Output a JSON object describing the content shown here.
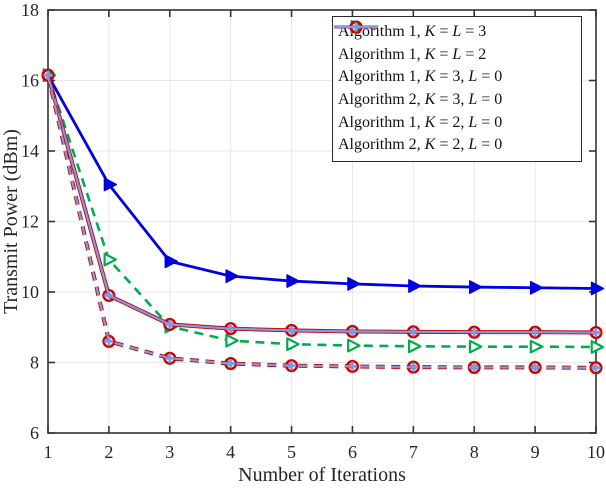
{
  "figure": {
    "background": "#ffffff",
    "axis_color": "#333333",
    "grid_color": "#e8e8e8",
    "text_color": "#262626"
  },
  "chart_data": {
    "type": "line",
    "title": "",
    "xlabel": "Number of Iterations",
    "ylabel": "Transmit Power (dBm)",
    "xlim": [
      1,
      10
    ],
    "ylim": [
      6,
      18
    ],
    "xticks": [
      1,
      2,
      3,
      4,
      5,
      6,
      7,
      8,
      9,
      10
    ],
    "yticks": [
      6,
      8,
      10,
      12,
      14,
      16,
      18
    ],
    "grid": true,
    "legend_position": "top-right",
    "x": [
      1,
      2,
      3,
      4,
      5,
      6,
      7,
      8,
      9,
      10
    ],
    "series": [
      {
        "name": "Algorithm 1, K = L = 3",
        "label_segments": [
          {
            "text": "Algorithm 1, "
          },
          {
            "text": "K",
            "italic": true
          },
          {
            "text": " = "
          },
          {
            "text": "L",
            "italic": true
          },
          {
            "text": " = 3"
          }
        ],
        "color": "#0101df",
        "line_style": "solid",
        "line_width": 2.8,
        "marker": "triangle-right-filled",
        "values": [
          16.15,
          13.05,
          10.87,
          10.45,
          10.31,
          10.23,
          10.17,
          10.14,
          10.12,
          10.1
        ]
      },
      {
        "name": "Algorithm 1, K = L = 2",
        "label_segments": [
          {
            "text": "Algorithm 1, "
          },
          {
            "text": "K",
            "italic": true
          },
          {
            "text": " = "
          },
          {
            "text": "L",
            "italic": true
          },
          {
            "text": " = 2"
          }
        ],
        "color": "#00ad4e",
        "line_style": "dashed",
        "line_width": 2.6,
        "marker": "triangle-right-open",
        "values": [
          16.15,
          10.92,
          9.02,
          8.62,
          8.52,
          8.48,
          8.46,
          8.45,
          8.45,
          8.44
        ]
      },
      {
        "name": "Algorithm 1, K = 3, L = 0",
        "label_segments": [
          {
            "text": "Algorithm 1, "
          },
          {
            "text": "K",
            "italic": true
          },
          {
            "text": " = 3, "
          },
          {
            "text": "L",
            "italic": true
          },
          {
            "text": " = 0"
          }
        ],
        "color": "#d10000",
        "line_style": "solid",
        "line_width": 4.0,
        "marker": "circle-open",
        "values": [
          16.15,
          9.9,
          9.08,
          8.96,
          8.91,
          8.88,
          8.87,
          8.86,
          8.86,
          8.85
        ]
      },
      {
        "name": "Algorithm 2, K = 3, L = 0",
        "label_segments": [
          {
            "text": "Algorithm 2, "
          },
          {
            "text": "K",
            "italic": true
          },
          {
            "text": " = 3, "
          },
          {
            "text": "L",
            "italic": true
          },
          {
            "text": " = 0"
          }
        ],
        "color": "#7d9ce5",
        "line_style": "solid",
        "line_width": 2.2,
        "marker": "plus",
        "values": [
          16.15,
          9.9,
          9.08,
          8.96,
          8.91,
          8.88,
          8.87,
          8.86,
          8.86,
          8.85
        ]
      },
      {
        "name": "Algorithm 1, K = 2, L = 0",
        "label_segments": [
          {
            "text": "Algorithm 1, "
          },
          {
            "text": "K",
            "italic": true
          },
          {
            "text": " = 2, "
          },
          {
            "text": "L",
            "italic": true
          },
          {
            "text": " = 0"
          }
        ],
        "color": "#d10000",
        "line_style": "dashed",
        "line_width": 4.0,
        "marker": "circle-open",
        "values": [
          16.15,
          8.6,
          8.12,
          7.97,
          7.91,
          7.89,
          7.87,
          7.86,
          7.86,
          7.85
        ]
      },
      {
        "name": "Algorithm 2, K = 2, L = 0",
        "label_segments": [
          {
            "text": "Algorithm 2, "
          },
          {
            "text": "K",
            "italic": true
          },
          {
            "text": " = 2, "
          },
          {
            "text": "L",
            "italic": true
          },
          {
            "text": " = 0"
          }
        ],
        "color": "#7d9ce5",
        "line_style": "dashed",
        "line_width": 2.2,
        "marker": "plus",
        "values": [
          16.15,
          8.6,
          8.12,
          7.97,
          7.91,
          7.89,
          7.87,
          7.86,
          7.86,
          7.85
        ]
      }
    ]
  }
}
